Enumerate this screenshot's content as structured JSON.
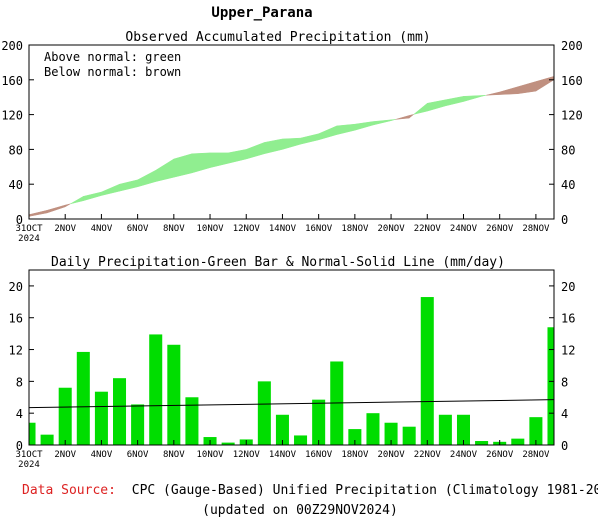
{
  "page_title": "Upper_Parana",
  "footer": {
    "source_label": "Data Source:",
    "source_text": "CPC (Gauge-Based) Unified Precipitation (Climatology 1981-2010)",
    "updated": "(updated on 00Z29NOV2024)"
  },
  "colors": {
    "above": "#90ee90",
    "below": "#c09080",
    "bars": "#00dd00",
    "source_label": "#dd2222"
  },
  "chart_data": [
    {
      "type": "area",
      "title": "Observed Accumulated Precipitation (mm)",
      "annotations": [
        "Above normal: green",
        "Below normal: brown"
      ],
      "ylim": [
        0,
        200
      ],
      "yticks": [
        0,
        40,
        80,
        120,
        160,
        200
      ],
      "x_tick_labels": [
        "31OCT",
        "2NOV",
        "4NOV",
        "6NOV",
        "8NOV",
        "10NOV",
        "12NOV",
        "14NOV",
        "16NOV",
        "18NOV",
        "20NOV",
        "22NOV",
        "24NOV",
        "26NOV",
        "28NOV"
      ],
      "x_first_label_year": "2024",
      "days": [
        "31OCT",
        "1NOV",
        "2NOV",
        "3NOV",
        "4NOV",
        "5NOV",
        "6NOV",
        "7NOV",
        "8NOV",
        "9NOV",
        "10NOV",
        "11NOV",
        "12NOV",
        "13NOV",
        "14NOV",
        "15NOV",
        "16NOV",
        "17NOV",
        "18NOV",
        "19NOV",
        "20NOV",
        "21NOV",
        "22NOV",
        "23NOV",
        "24NOV",
        "25NOV",
        "26NOV",
        "27NOV",
        "28NOV",
        "29NOV"
      ],
      "series": [
        {
          "name": "observed",
          "values": [
            3,
            7,
            14,
            26,
            31,
            40,
            45,
            56,
            69,
            75,
            76,
            76,
            80,
            88,
            92,
            93,
            98,
            107,
            109,
            112,
            114,
            116,
            133,
            137,
            141,
            142,
            143,
            144,
            147,
            160
          ]
        },
        {
          "name": "normal",
          "values": [
            5,
            10,
            16,
            21,
            27,
            32,
            37,
            43,
            48,
            53,
            59,
            64,
            69,
            75,
            80,
            86,
            91,
            97,
            102,
            108,
            113,
            119,
            124,
            130,
            135,
            141,
            146,
            152,
            158,
            164
          ]
        }
      ]
    },
    {
      "type": "bar",
      "title": "Daily Precipitation-Green Bar & Normal-Solid Line (mm/day)",
      "ylim": [
        0,
        22
      ],
      "yticks": [
        0,
        4,
        8,
        12,
        16,
        20
      ],
      "x_tick_labels": [
        "31OCT",
        "2NOV",
        "4NOV",
        "6NOV",
        "8NOV",
        "10NOV",
        "12NOV",
        "14NOV",
        "16NOV",
        "18NOV",
        "20NOV",
        "22NOV",
        "24NOV",
        "26NOV",
        "28NOV"
      ],
      "x_first_label_year": "2024",
      "days": [
        "31OCT",
        "1NOV",
        "2NOV",
        "3NOV",
        "4NOV",
        "5NOV",
        "6NOV",
        "7NOV",
        "8NOV",
        "9NOV",
        "10NOV",
        "11NOV",
        "12NOV",
        "13NOV",
        "14NOV",
        "15NOV",
        "16NOV",
        "17NOV",
        "18NOV",
        "19NOV",
        "20NOV",
        "21NOV",
        "22NOV",
        "23NOV",
        "24NOV",
        "25NOV",
        "26NOV",
        "27NOV",
        "28NOV",
        "29NOV"
      ],
      "values": [
        2.8,
        1.3,
        7.2,
        11.7,
        6.7,
        8.4,
        5.1,
        13.9,
        12.6,
        6.0,
        1.0,
        0.3,
        0.7,
        8.0,
        3.8,
        1.2,
        5.7,
        10.5,
        2.0,
        4.0,
        2.8,
        2.3,
        18.6,
        3.8,
        3.8,
        0.5,
        0.4,
        0.8,
        3.5,
        14.8
      ],
      "normal": [
        4.7,
        5.7
      ]
    }
  ]
}
